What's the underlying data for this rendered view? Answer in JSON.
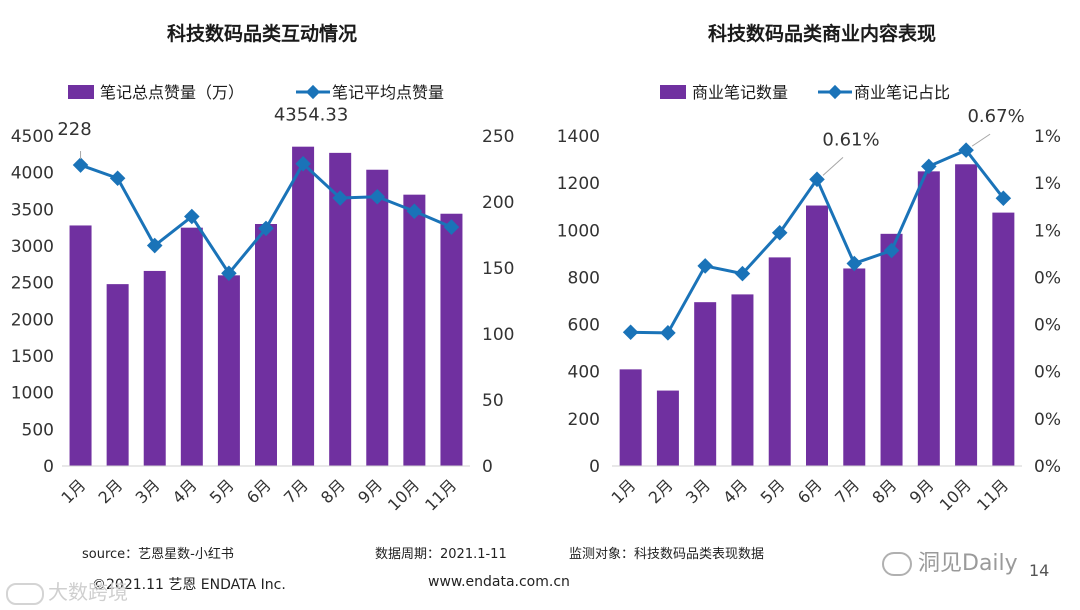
{
  "chart_data": [
    {
      "type": "bar+line",
      "title": "科技数码品类互动情况",
      "categories": [
        "1月",
        "2月",
        "3月",
        "4月",
        "5月",
        "6月",
        "7月",
        "8月",
        "9月",
        "10月",
        "11月"
      ],
      "series": [
        {
          "name": "笔记总点赞量（万）",
          "type": "bar",
          "axis": "left",
          "values": [
            3280,
            2480,
            2660,
            3250,
            2600,
            3300,
            4354.33,
            4270,
            4040,
            3700,
            3440
          ]
        },
        {
          "name": "笔记平均点赞量",
          "type": "line",
          "axis": "right",
          "values": [
            228,
            218,
            167,
            189,
            146,
            180,
            229,
            203,
            204,
            193,
            181
          ]
        }
      ],
      "left_axis": {
        "min": 0,
        "max": 4500,
        "ticks": [
          "0",
          "500",
          "1000",
          "1500",
          "2000",
          "2500",
          "3000",
          "3500",
          "4000",
          "4500"
        ]
      },
      "right_axis": {
        "min": 0,
        "max": 250,
        "ticks": [
          "0",
          "50",
          "100",
          "150",
          "200",
          "250"
        ]
      },
      "annotations": [
        {
          "text": "228",
          "series": 1,
          "index": 0
        },
        {
          "text": "4354.33",
          "series": 0,
          "index": 6
        }
      ]
    },
    {
      "type": "bar+line",
      "title": "科技数码品类商业内容表现",
      "categories": [
        "1月",
        "2月",
        "3月",
        "4月",
        "5月",
        "6月",
        "7月",
        "8月",
        "9月",
        "10月",
        "11月"
      ],
      "series": [
        {
          "name": "商业笔记数量",
          "type": "bar",
          "axis": "left",
          "values": [
            410,
            320,
            695,
            728,
            885,
            1105,
            838,
            985,
            1250,
            1280,
            1075
          ]
        },
        {
          "name": "商业笔记占比",
          "type": "line",
          "axis": "right",
          "values": [
            0.2837,
            0.2825,
            0.4244,
            0.4081,
            0.4947,
            0.6081,
            0.4296,
            0.4571,
            0.6355,
            0.67,
            0.568
          ]
        }
      ],
      "left_axis": {
        "min": 0,
        "max": 1400,
        "ticks": [
          "0",
          "200",
          "400",
          "600",
          "800",
          "1000",
          "1200",
          "1400"
        ]
      },
      "right_axis": {
        "min": 0,
        "max": 0.7,
        "ticks": [
          "0%",
          "0%",
          "0%",
          "0%",
          "0%",
          "1%",
          "1%",
          "1%"
        ]
      },
      "annotations": [
        {
          "text": "0.61%",
          "series": 1,
          "index": 5
        },
        {
          "text": "0.67%",
          "series": 1,
          "index": 9
        }
      ]
    }
  ],
  "colors": {
    "bar": "#7030a0",
    "line": "#1a73b8",
    "axis_text": "#333333",
    "leader": "#a6a6a6"
  },
  "footer": {
    "source": "source：艺恩星数-小红书",
    "period": "数据周期：2021.1-11",
    "target": "监测对象：科技数码品类表现数据",
    "copyright": "©2021.11 艺恩 ENDATA Inc.",
    "website": "www.endata.com.cn",
    "page_number": "14"
  },
  "watermarks": {
    "left": "大数跨境",
    "right": "洞见Daily"
  }
}
